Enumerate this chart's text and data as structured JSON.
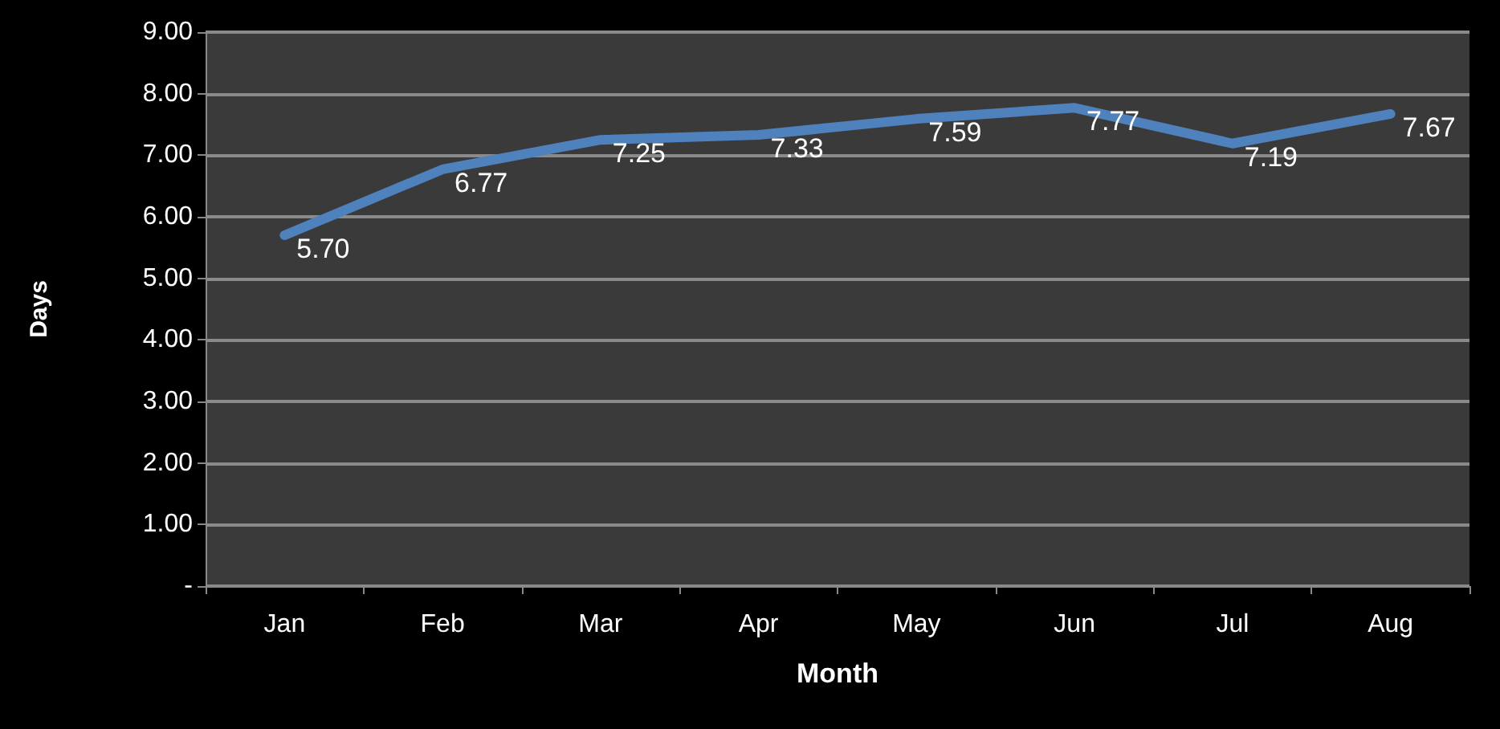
{
  "chart_data": {
    "type": "line",
    "xlabel": "Month",
    "ylabel": "Days",
    "categories": [
      "Jan",
      "Feb",
      "Mar",
      "Apr",
      "May",
      "Jun",
      "Jul",
      "Aug"
    ],
    "series": [
      {
        "color": "#4f81bd",
        "values": [
          5.7,
          6.77,
          7.25,
          7.33,
          7.59,
          7.77,
          7.19,
          7.67
        ],
        "value_labels": [
          "5.70",
          "6.77",
          "7.25",
          "7.33",
          "7.59",
          "7.77",
          "7.19",
          "7.67"
        ]
      }
    ],
    "ylim": [
      0,
      9
    ],
    "yticks": [
      {
        "value": 0,
        "label": "-"
      },
      {
        "value": 1,
        "label": "1.00"
      },
      {
        "value": 2,
        "label": "2.00"
      },
      {
        "value": 3,
        "label": "3.00"
      },
      {
        "value": 4,
        "label": "4.00"
      },
      {
        "value": 5,
        "label": "5.00"
      },
      {
        "value": 6,
        "label": "6.00"
      },
      {
        "value": 7,
        "label": "7.00"
      },
      {
        "value": 8,
        "label": "8.00"
      },
      {
        "value": 9,
        "label": "9.00"
      }
    ],
    "grid": "y",
    "marker": "none",
    "line_style": "solid"
  }
}
